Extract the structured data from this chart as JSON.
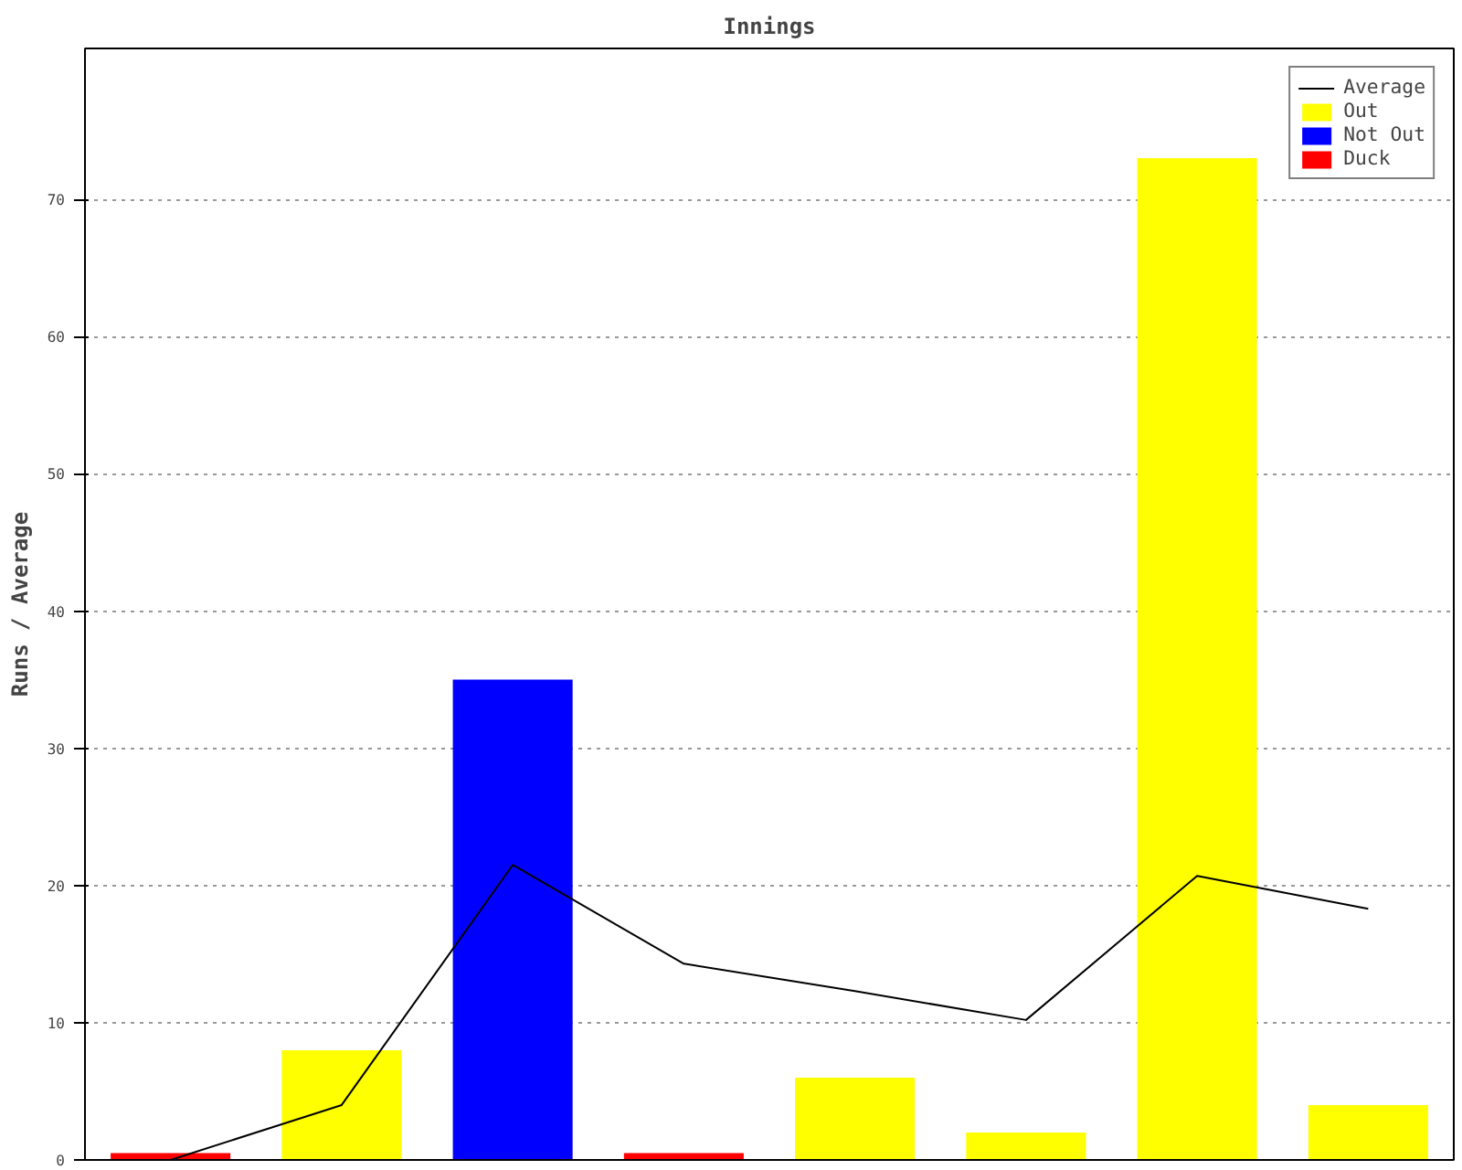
{
  "chart_data": {
    "type": "bar",
    "title": "Innings",
    "ylabel": "Runs / Average",
    "categories": [
      null,
      null,
      null,
      null,
      null,
      null,
      null,
      null
    ],
    "series": [
      {
        "name": "Average",
        "type": "line",
        "color": "#000000",
        "values": [
          0,
          4,
          21.5,
          14.3,
          12.3,
          10.2,
          20.7,
          18.3
        ]
      },
      {
        "name": "Out",
        "color": "#ffff00",
        "values": [
          null,
          8,
          null,
          null,
          6,
          2,
          73,
          4
        ]
      },
      {
        "name": "Not Out",
        "color": "#0000ff",
        "values": [
          null,
          null,
          35,
          null,
          null,
          null,
          null,
          null
        ]
      },
      {
        "name": "Duck",
        "color": "#ff0000",
        "values": [
          0.5,
          null,
          null,
          0.5,
          null,
          null,
          null,
          null
        ]
      }
    ],
    "ylim": [
      0,
      81
    ],
    "yticks": [
      0,
      10,
      20,
      30,
      40,
      50,
      60,
      70
    ],
    "grid": "y",
    "legend": "top right",
    "marker": "none",
    "line_style": "solid"
  }
}
